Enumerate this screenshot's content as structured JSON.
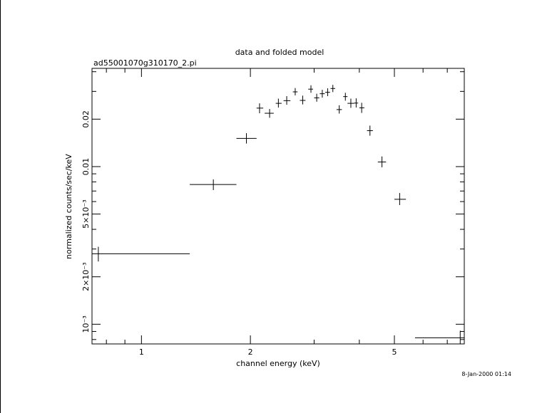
{
  "chart_data": {
    "type": "scatter",
    "title": "data and folded model",
    "subtitle": "ad55001070g310170_2.pi",
    "xlabel": "channel energy (keV)",
    "ylabel": "normalized counts/sec/keV",
    "timestamp": "8-Jan-2000 01:14",
    "x_scale": "log",
    "y_scale": "log",
    "xlim": [
      0.73,
      7.8
    ],
    "ylim": [
      0.00075,
      0.042
    ],
    "x_ticks": [
      {
        "value": 1,
        "label": "1"
      },
      {
        "value": 2,
        "label": "2"
      },
      {
        "value": 5,
        "label": "5"
      }
    ],
    "y_ticks": [
      {
        "value": 0.02,
        "label": "0.02"
      },
      {
        "value": 0.01,
        "label": "0.01"
      },
      {
        "value": 0.005,
        "label": "5×10⁻³"
      },
      {
        "value": 0.002,
        "label": "2×10⁻³"
      },
      {
        "value": 0.001,
        "label": "10⁻³"
      }
    ],
    "points": [
      {
        "x": 0.76,
        "xlo": 0.73,
        "xhi": 1.36,
        "y": 0.0028,
        "ylo": 0.0025,
        "yhi": 0.0031
      },
      {
        "x": 1.58,
        "xlo": 1.36,
        "xhi": 1.83,
        "y": 0.0077,
        "ylo": 0.0071,
        "yhi": 0.0083
      },
      {
        "x": 1.95,
        "xlo": 1.83,
        "xhi": 2.08,
        "y": 0.0151,
        "ylo": 0.014,
        "yhi": 0.0163
      },
      {
        "x": 2.12,
        "xlo": 2.08,
        "xhi": 2.17,
        "y": 0.0235,
        "ylo": 0.0218,
        "yhi": 0.0252
      },
      {
        "x": 2.26,
        "xlo": 2.19,
        "xhi": 2.32,
        "y": 0.0218,
        "ylo": 0.0204,
        "yhi": 0.0232
      },
      {
        "x": 2.39,
        "xlo": 2.35,
        "xhi": 2.44,
        "y": 0.0252,
        "ylo": 0.0237,
        "yhi": 0.027
      },
      {
        "x": 2.52,
        "xlo": 2.47,
        "xhi": 2.58,
        "y": 0.0262,
        "ylo": 0.0247,
        "yhi": 0.028
      },
      {
        "x": 2.66,
        "xlo": 2.62,
        "xhi": 2.7,
        "y": 0.0298,
        "ylo": 0.0283,
        "yhi": 0.0315
      },
      {
        "x": 2.79,
        "xlo": 2.74,
        "xhi": 2.84,
        "y": 0.0263,
        "ylo": 0.0248,
        "yhi": 0.0282
      },
      {
        "x": 2.94,
        "xlo": 2.89,
        "xhi": 2.98,
        "y": 0.031,
        "ylo": 0.0294,
        "yhi": 0.0328
      },
      {
        "x": 3.05,
        "xlo": 3.0,
        "xhi": 3.1,
        "y": 0.0273,
        "ylo": 0.0258,
        "yhi": 0.029
      },
      {
        "x": 3.16,
        "xlo": 3.11,
        "xhi": 3.21,
        "y": 0.029,
        "ylo": 0.0274,
        "yhi": 0.0307
      },
      {
        "x": 3.27,
        "xlo": 3.22,
        "xhi": 3.32,
        "y": 0.0296,
        "ylo": 0.028,
        "yhi": 0.0314
      },
      {
        "x": 3.38,
        "xlo": 3.33,
        "xhi": 3.43,
        "y": 0.0313,
        "ylo": 0.0297,
        "yhi": 0.033
      },
      {
        "x": 3.52,
        "xlo": 3.46,
        "xhi": 3.58,
        "y": 0.023,
        "ylo": 0.0217,
        "yhi": 0.0245
      },
      {
        "x": 3.66,
        "xlo": 3.61,
        "xhi": 3.71,
        "y": 0.0278,
        "ylo": 0.0262,
        "yhi": 0.0294
      },
      {
        "x": 3.79,
        "xlo": 3.71,
        "xhi": 3.87,
        "y": 0.0252,
        "ylo": 0.0236,
        "yhi": 0.027
      },
      {
        "x": 3.92,
        "xlo": 3.87,
        "xhi": 3.97,
        "y": 0.0253,
        "ylo": 0.0237,
        "yhi": 0.0271
      },
      {
        "x": 4.06,
        "xlo": 4.0,
        "xhi": 4.13,
        "y": 0.0236,
        "ylo": 0.0219,
        "yhi": 0.0254
      },
      {
        "x": 4.28,
        "xlo": 4.2,
        "xhi": 4.36,
        "y": 0.0169,
        "ylo": 0.0157,
        "yhi": 0.0182
      },
      {
        "x": 4.62,
        "xlo": 4.5,
        "xhi": 4.74,
        "y": 0.0107,
        "ylo": 0.0099,
        "yhi": 0.0116
      },
      {
        "x": 5.17,
        "xlo": 5.0,
        "xhi": 5.38,
        "y": 0.0062,
        "ylo": 0.0057,
        "yhi": 0.0068
      },
      {
        "x": 7.6,
        "xlo": 5.7,
        "xhi": 7.8,
        "y": 0.00082,
        "ylo": 0.00075,
        "yhi": 0.00091
      }
    ],
    "grid": false,
    "legend": "none"
  }
}
